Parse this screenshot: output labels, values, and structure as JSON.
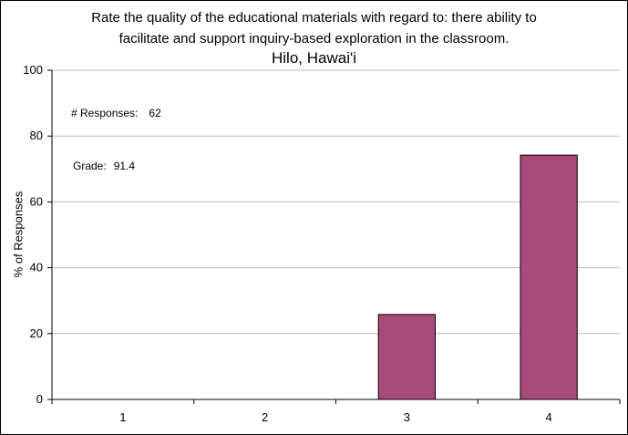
{
  "chart_data": {
    "type": "bar",
    "title": [
      "Rate the quality of the educational materials with regard to: there ability to",
      "facilitate and support inquiry-based exploration in the classroom."
    ],
    "subtitle": "Hilo, Hawai'i",
    "ylabel": "% of Responses",
    "xlabel": "",
    "categories": [
      "1",
      "2",
      "3",
      "4"
    ],
    "values": [
      0,
      0,
      25.8,
      74.2
    ],
    "ylim": [
      0,
      100
    ],
    "yticks": [
      0,
      20,
      40,
      60,
      80,
      100
    ],
    "grid": true,
    "bar_color": "#AA4A7A",
    "annotations": {
      "responses_label": "# Responses:",
      "responses_value": "62",
      "grade_label": "Grade:",
      "grade_value": "91.4"
    }
  }
}
